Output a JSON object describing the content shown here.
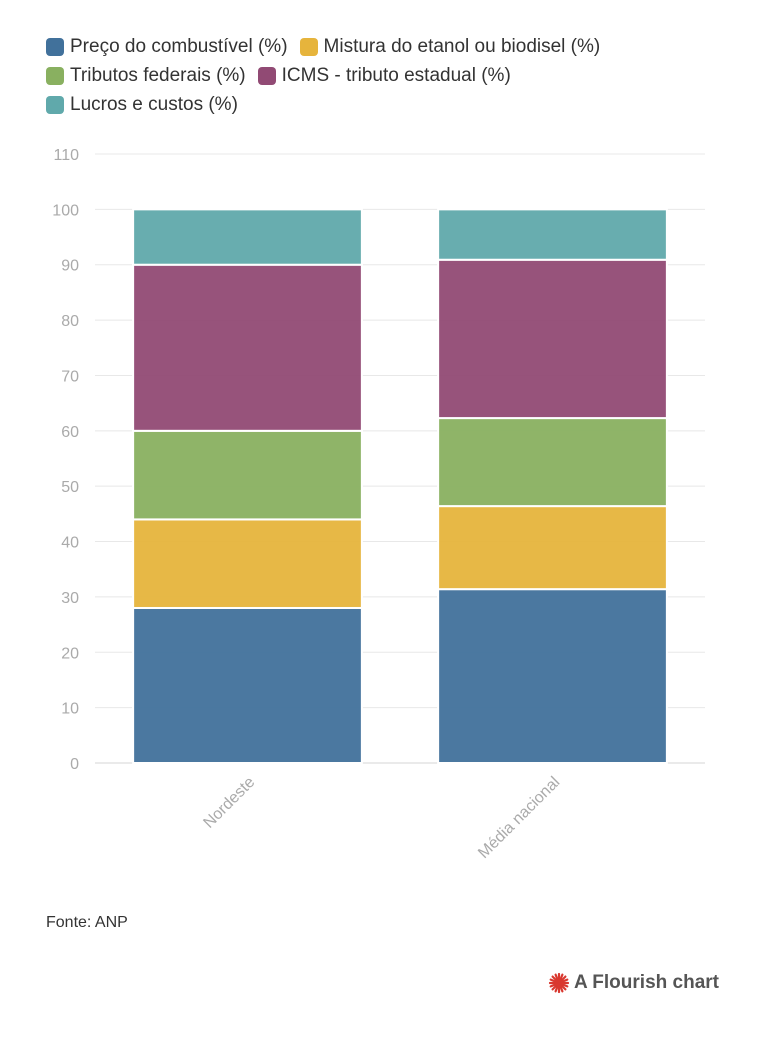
{
  "chart_data": {
    "type": "stacked-bar",
    "categories": [
      "Nordeste",
      "Média nacional"
    ],
    "series": [
      {
        "name": "Preço do combustível (%)",
        "color": "#41719b",
        "values": [
          28,
          31.4
        ]
      },
      {
        "name": "Mistura do etanol ou biodisel (%)",
        "color": "#e6b43c",
        "values": [
          16,
          15
        ]
      },
      {
        "name": "Tributos federais (%)",
        "color": "#89b060",
        "values": [
          16,
          15.9
        ]
      },
      {
        "name": "ICMS - tributo estadual (%)",
        "color": "#914a74",
        "values": [
          30,
          28.6
        ]
      },
      {
        "name": "Lucros e custos (%)",
        "color": "#60a9ab",
        "values": [
          10,
          9.1
        ]
      }
    ],
    "ylim": [
      0,
      110
    ],
    "yticks": [
      0,
      10,
      20,
      30,
      40,
      50,
      60,
      70,
      80,
      90,
      100,
      110
    ],
    "grid": true,
    "source": "Fonte: ANP",
    "credit": "A Flourish chart"
  }
}
